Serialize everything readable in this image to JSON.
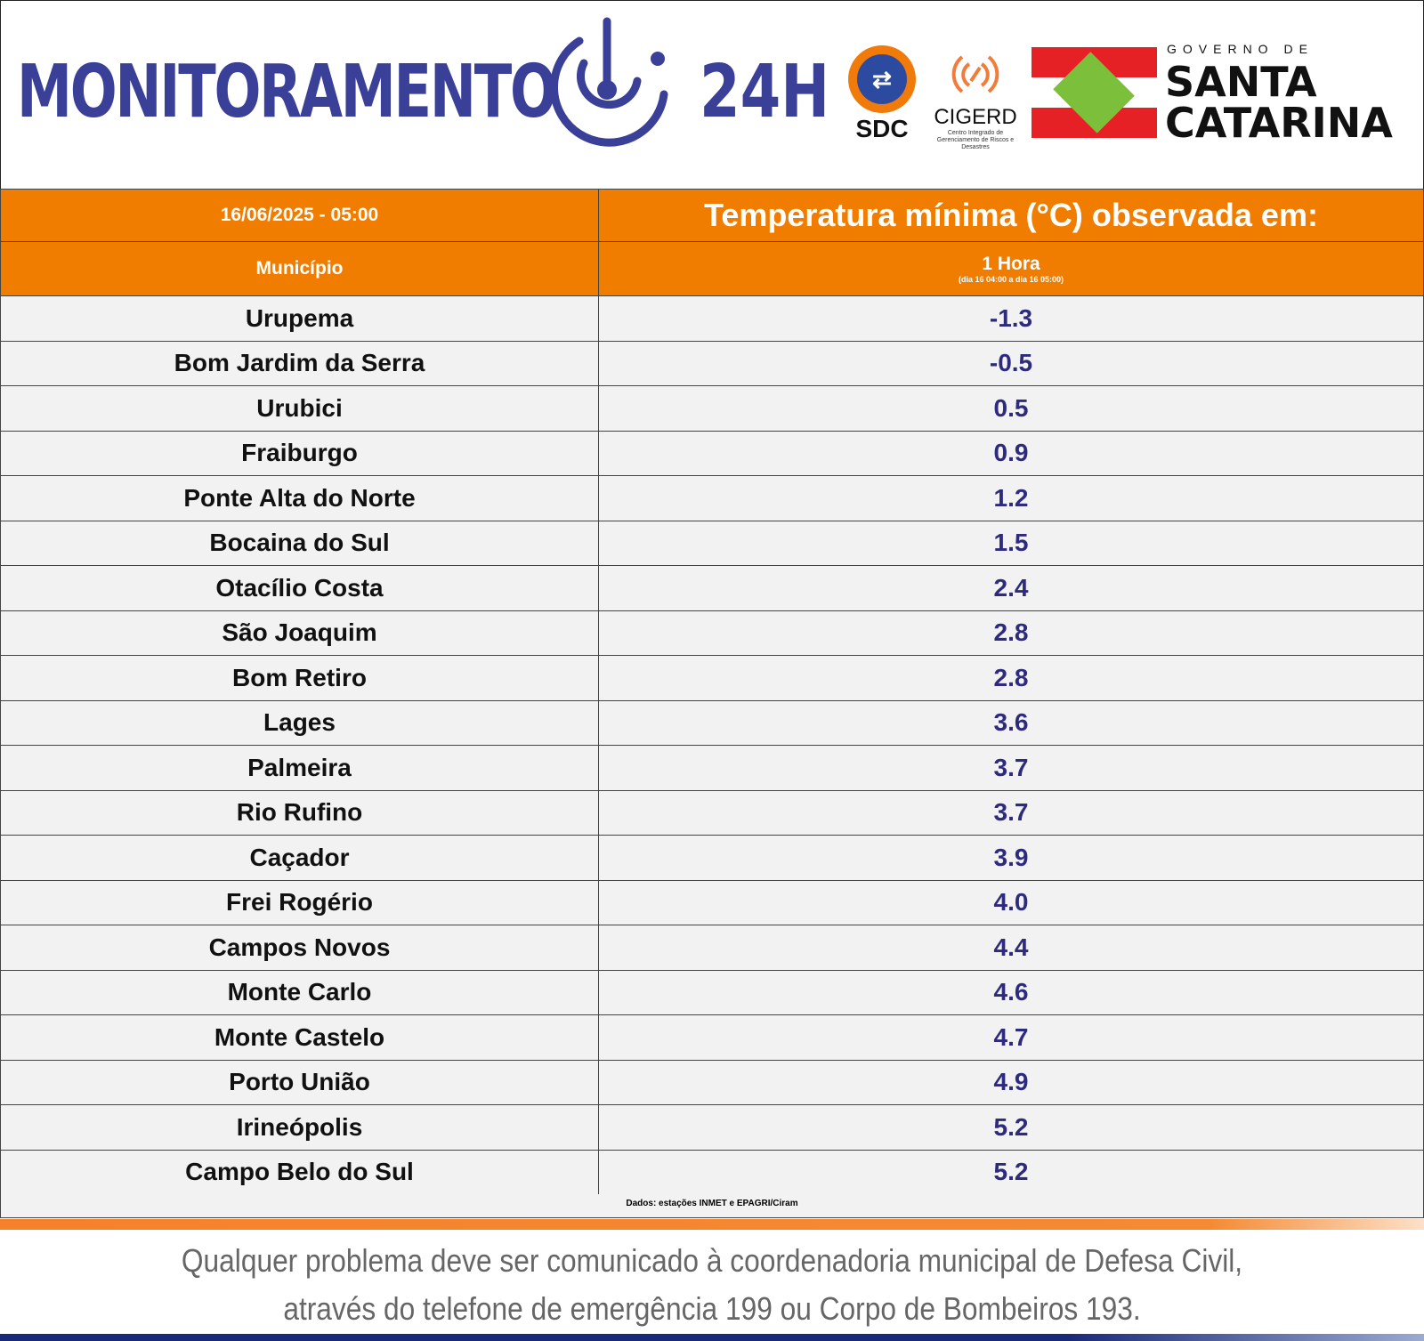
{
  "header": {
    "title_left": "MONITORAMENTO",
    "title_right": "24H",
    "sdc": "SDC",
    "cigerd": "CIGERD",
    "cigerd_sub": "Centro Integrado de Gerenciamento de Riscos e Desastres",
    "gov_line": "GOVERNO DE",
    "state_line1": "SANTA",
    "state_line2": "CATARINA"
  },
  "table": {
    "datetime": "16/06/2025 - 05:00",
    "title": "Temperatura mínima (°C) observada em:",
    "col_municipio": "Município",
    "col_period": "1 Hora",
    "col_period_sub": "(dia 16 04:00 a dia 16 05:00)",
    "rows": [
      {
        "m": "Urupema",
        "v": "-1.3"
      },
      {
        "m": "Bom Jardim da Serra",
        "v": "-0.5"
      },
      {
        "m": "Urubici",
        "v": "0.5"
      },
      {
        "m": "Fraiburgo",
        "v": "0.9"
      },
      {
        "m": "Ponte Alta do Norte",
        "v": "1.2"
      },
      {
        "m": "Bocaina do Sul",
        "v": "1.5"
      },
      {
        "m": "Otacílio Costa",
        "v": "2.4"
      },
      {
        "m": "São Joaquim",
        "v": "2.8"
      },
      {
        "m": "Bom Retiro",
        "v": "2.8"
      },
      {
        "m": "Lages",
        "v": "3.6"
      },
      {
        "m": "Palmeira",
        "v": "3.7"
      },
      {
        "m": "Rio Rufino",
        "v": "3.7"
      },
      {
        "m": "Caçador",
        "v": "3.9"
      },
      {
        "m": "Frei Rogério",
        "v": "4.0"
      },
      {
        "m": "Campos Novos",
        "v": "4.4"
      },
      {
        "m": "Monte Carlo",
        "v": "4.6"
      },
      {
        "m": "Monte Castelo",
        "v": "4.7"
      },
      {
        "m": "Porto União",
        "v": "4.9"
      },
      {
        "m": "Irineópolis",
        "v": "5.2"
      },
      {
        "m": "Campo Belo do Sul",
        "v": "5.2"
      }
    ]
  },
  "source": "Dados: estações INMET e EPAGRI/Ciram",
  "footer": {
    "line1": "Qualquer problema deve ser comunicado à coordenadoria municipal de Defesa Civil,",
    "line2": "através do telefone de emergência 199 ou Corpo de Bombeiros 193."
  },
  "colors": {
    "orange": "#f07d00",
    "value_blue": "#2e2a7e",
    "logo_blue": "#3a3f98"
  }
}
